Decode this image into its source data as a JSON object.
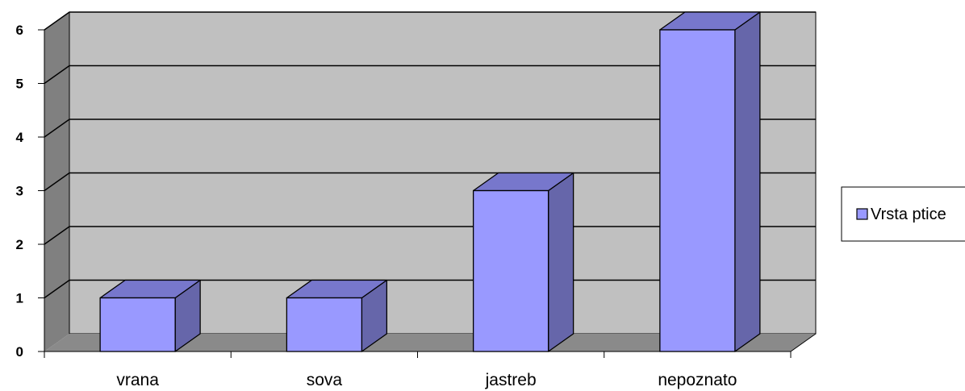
{
  "chart_data": {
    "type": "bar",
    "categories": [
      "vrana",
      "sova",
      "jastreb",
      "nepoznato"
    ],
    "series": [
      {
        "name": "Vrsta ptice",
        "values": [
          1,
          1,
          3,
          6
        ]
      }
    ],
    "yticks": [
      "0",
      "1",
      "2",
      "3",
      "4",
      "5",
      "6"
    ],
    "ylim": [
      0,
      6
    ],
    "grid": true,
    "legend": "right",
    "style": "3d-column",
    "colors": {
      "bar_front": "#9999ff",
      "bar_side": "#6666aa",
      "bar_top": "#7777cc",
      "back_wall": "#c0c0c0",
      "side_wall": "#808080",
      "floor": "#8a8a8a",
      "grid": "#000000"
    }
  }
}
